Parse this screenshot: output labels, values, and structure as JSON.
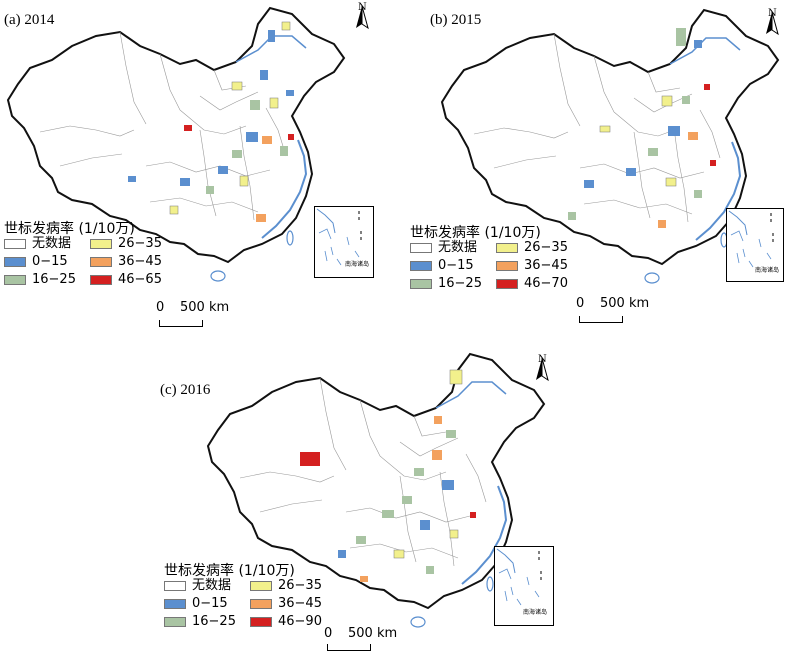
{
  "panels": [
    {
      "title": "(a) 2014"
    },
    {
      "title": "(b) 2015"
    },
    {
      "title": "(c) 2016"
    }
  ],
  "legends": [
    {
      "title": "世标发病率 (1/10万)",
      "items": [
        {
          "label": "无数据",
          "color": "#ffffff"
        },
        {
          "label": "0−15",
          "color": "#5b8fcf"
        },
        {
          "label": "16−25",
          "color": "#a9c4a3"
        },
        {
          "label": "26−35",
          "color": "#f2f08c"
        },
        {
          "label": "36−45",
          "color": "#f3a15e"
        },
        {
          "label": "46−65",
          "color": "#d42020"
        }
      ]
    },
    {
      "title": "世标发病率 (1/10万)",
      "items": [
        {
          "label": "无数据",
          "color": "#ffffff"
        },
        {
          "label": "0−15",
          "color": "#5b8fcf"
        },
        {
          "label": "16−25",
          "color": "#a9c4a3"
        },
        {
          "label": "26−35",
          "color": "#f2f08c"
        },
        {
          "label": "36−45",
          "color": "#f3a15e"
        },
        {
          "label": "46−70",
          "color": "#d42020"
        }
      ]
    },
    {
      "title": "世标发病率 (1/10万)",
      "items": [
        {
          "label": "无数据",
          "color": "#ffffff"
        },
        {
          "label": "0−15",
          "color": "#5b8fcf"
        },
        {
          "label": "16−25",
          "color": "#a9c4a3"
        },
        {
          "label": "26−35",
          "color": "#f2f08c"
        },
        {
          "label": "36−45",
          "color": "#f3a15e"
        },
        {
          "label": "46−90",
          "color": "#d42020"
        }
      ]
    }
  ],
  "scale_bar": {
    "zero": "0",
    "distance": "500 km"
  },
  "north_label": "N",
  "inset_label": "南海诸岛"
}
